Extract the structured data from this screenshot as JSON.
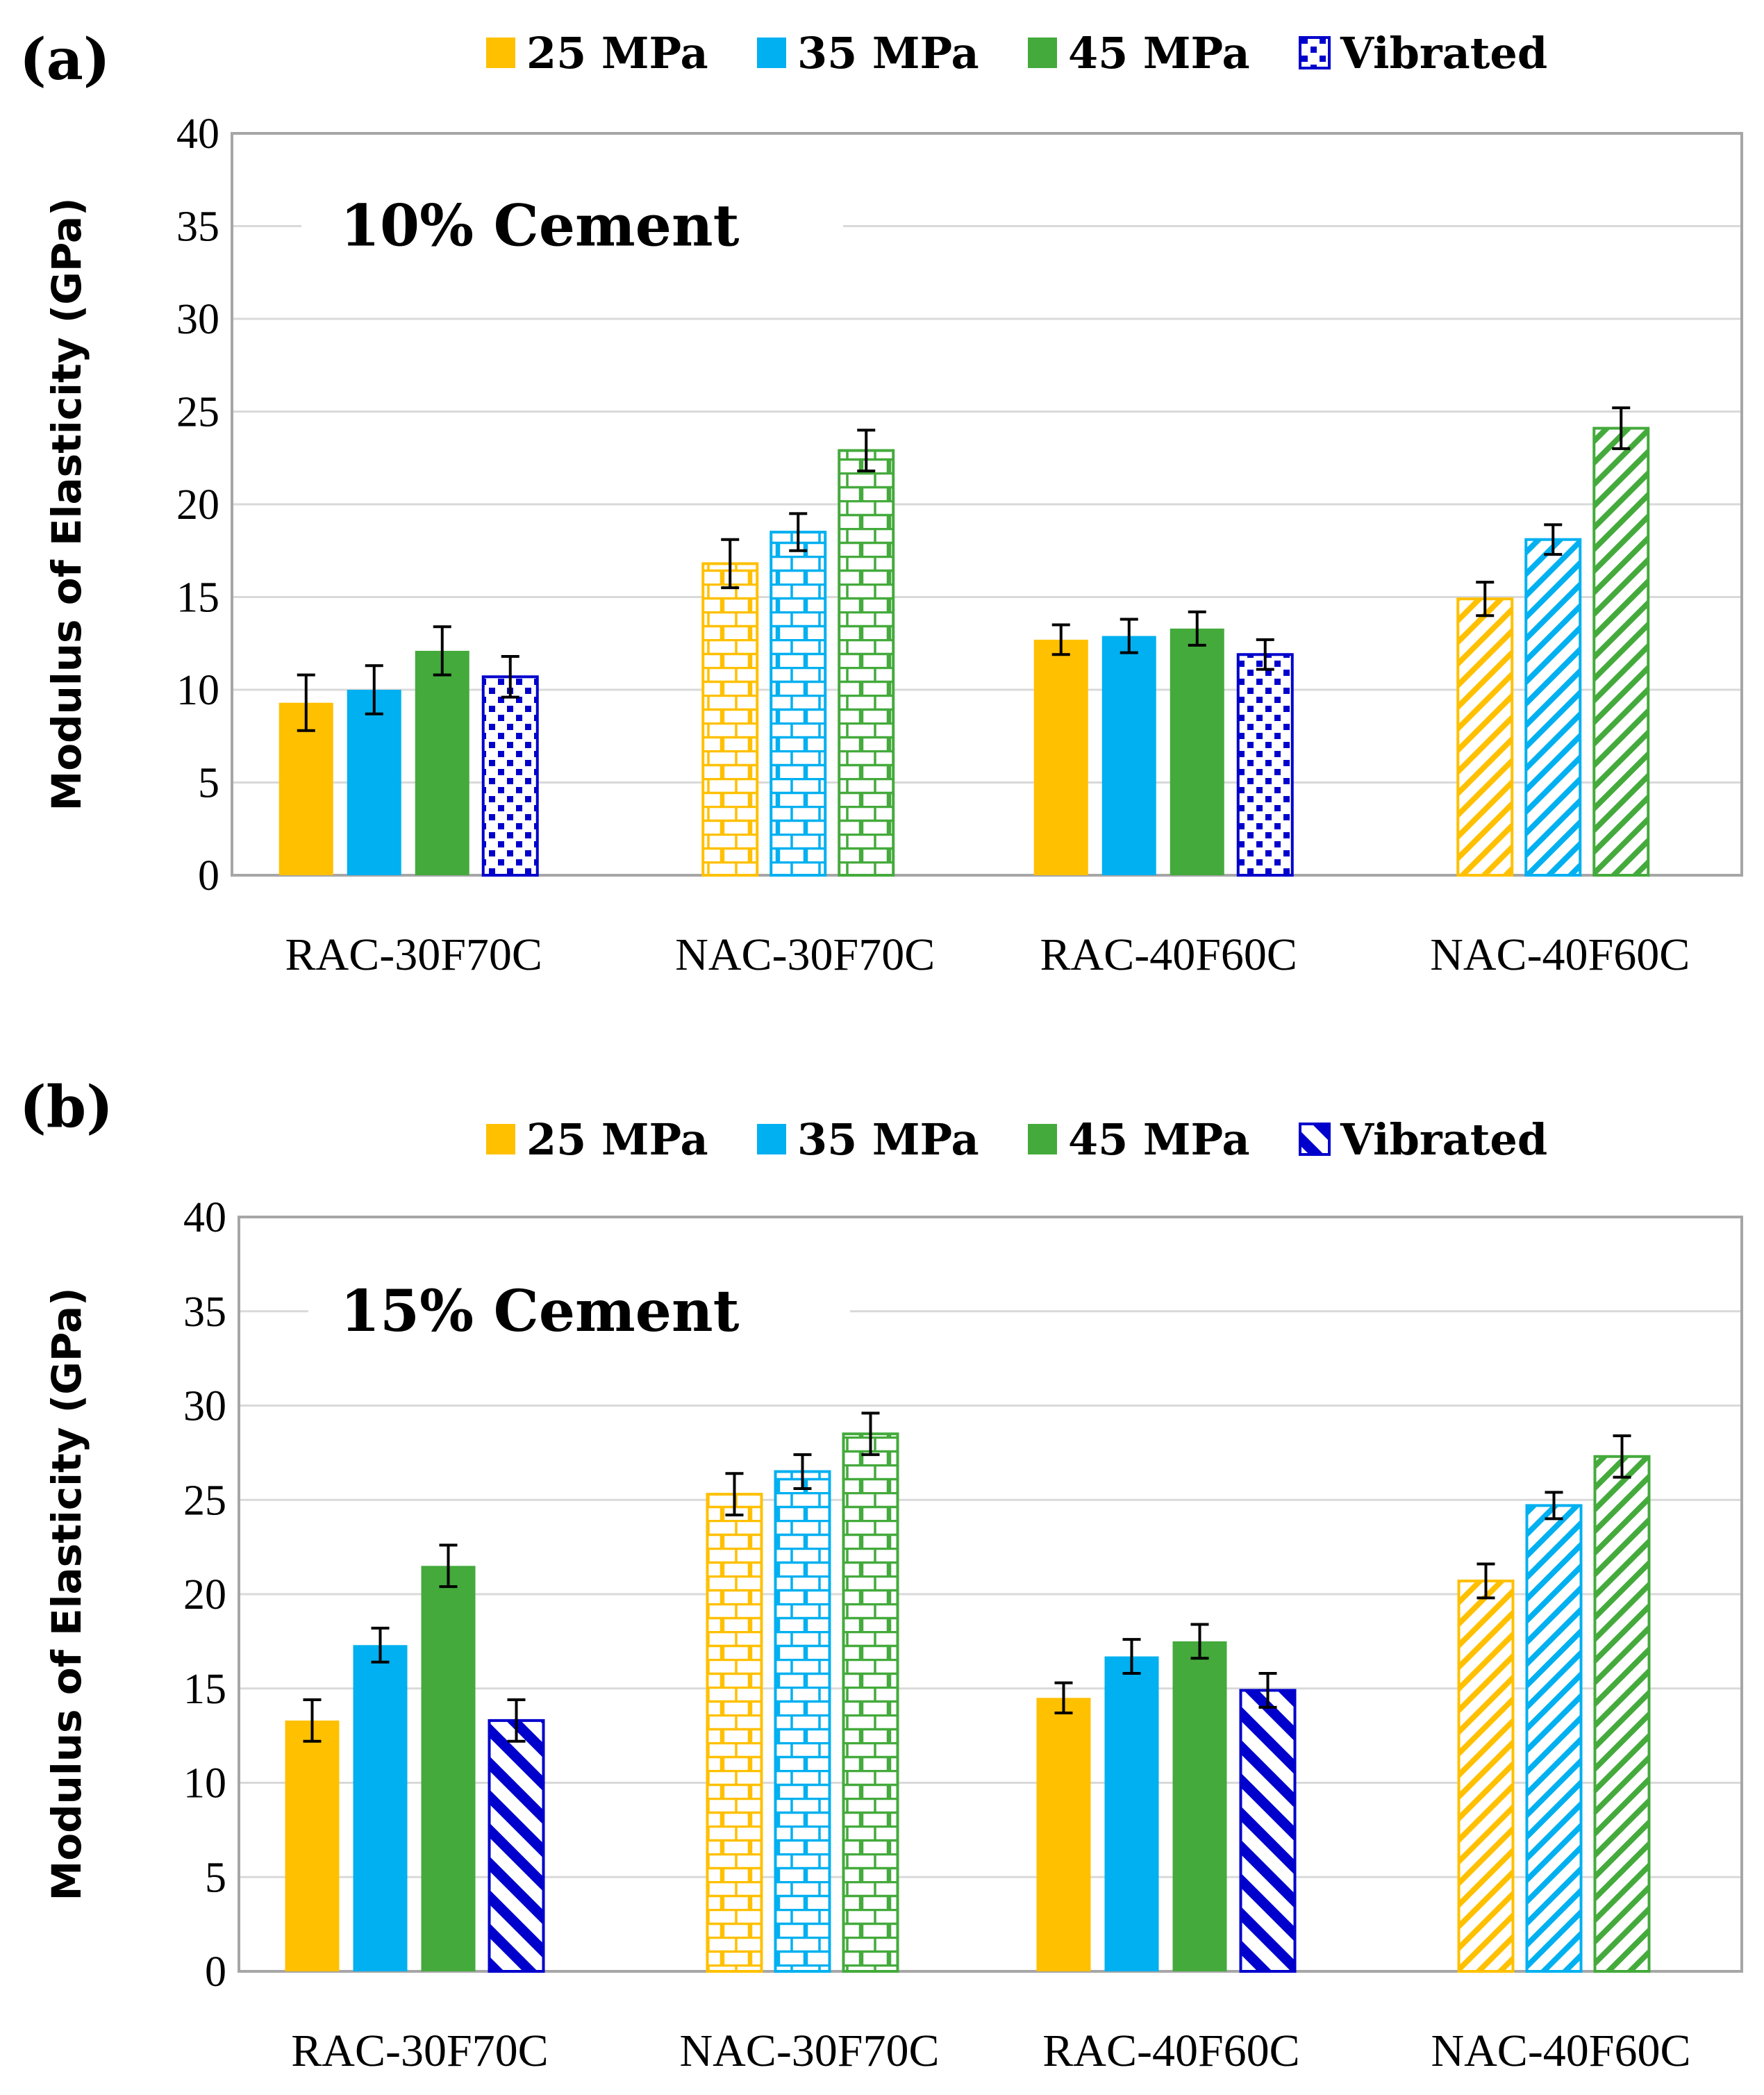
{
  "colors": {
    "25 MPa": "#FFC000",
    "35 MPa": "#00B0F0",
    "45 MPa": "#44AA3C",
    "Vibrated": "#0000CC",
    "axis": "#A6A6A6",
    "grid": "#D9D9D9"
  },
  "chart_data": [
    {
      "panel_label": "(a)",
      "type": "bar",
      "annotation": "10% Cement",
      "ylabel": "Modulus of Elasticity (GPa)",
      "xlabel": "",
      "ylim": [
        0,
        40
      ],
      "yticks": [
        "0",
        "5",
        "10",
        "15",
        "20",
        "25",
        "30",
        "35",
        "40"
      ],
      "grid": true,
      "legend": {
        "placement": "top",
        "entries": [
          "25 MPa",
          "35 MPa",
          "45 MPa",
          "Vibrated"
        ],
        "vibrated_pattern": "dots"
      },
      "categories": [
        "RAC-30F70C",
        "NAC-30F70C",
        "RAC-40F60C",
        "NAC-40F60C"
      ],
      "category_patterns": [
        "solid",
        "brick",
        "solid",
        "diagonal"
      ],
      "vibrated_pattern": "dots",
      "series": [
        {
          "name": "25 MPa",
          "values": [
            9.3,
            16.8,
            12.7,
            14.9
          ],
          "errors": [
            1.5,
            1.3,
            0.8,
            0.9
          ]
        },
        {
          "name": "35 MPa",
          "values": [
            10.0,
            18.5,
            12.9,
            18.1
          ],
          "errors": [
            1.3,
            1.0,
            0.9,
            0.8
          ]
        },
        {
          "name": "45 MPa",
          "values": [
            12.1,
            22.9,
            13.3,
            24.1
          ],
          "errors": [
            1.3,
            1.1,
            0.9,
            1.1
          ]
        },
        {
          "name": "Vibrated",
          "values": [
            10.7,
            null,
            11.9,
            null
          ],
          "errors": [
            1.1,
            null,
            0.8,
            null
          ]
        }
      ]
    },
    {
      "panel_label": "(b)",
      "type": "bar",
      "annotation": "15% Cement",
      "ylabel": "Modulus of Elasticity (GPa)",
      "xlabel": "",
      "ylim": [
        0,
        40
      ],
      "yticks": [
        "0",
        "5",
        "10",
        "15",
        "20",
        "25",
        "30",
        "35",
        "40"
      ],
      "grid": true,
      "legend": {
        "placement": "top",
        "entries": [
          "25 MPa",
          "35 MPa",
          "45 MPa",
          "Vibrated"
        ],
        "vibrated_pattern": "diagonal-thick"
      },
      "categories": [
        "RAC-30F70C",
        "NAC-30F70C",
        "RAC-40F60C",
        "NAC-40F60C"
      ],
      "category_patterns": [
        "solid",
        "brick",
        "solid",
        "diagonal"
      ],
      "vibrated_pattern": "diagonal-thick",
      "series": [
        {
          "name": "25 MPa",
          "values": [
            13.3,
            25.3,
            14.5,
            20.7
          ],
          "errors": [
            1.1,
            1.1,
            0.8,
            0.9
          ]
        },
        {
          "name": "35 MPa",
          "values": [
            17.3,
            26.5,
            16.7,
            24.7
          ],
          "errors": [
            0.9,
            0.9,
            0.9,
            0.7
          ]
        },
        {
          "name": "45 MPa",
          "values": [
            21.5,
            28.5,
            17.5,
            27.3
          ],
          "errors": [
            1.1,
            1.1,
            0.9,
            1.1
          ]
        },
        {
          "name": "Vibrated",
          "values": [
            13.3,
            null,
            14.9,
            null
          ],
          "errors": [
            1.1,
            null,
            0.9,
            null
          ]
        }
      ]
    }
  ]
}
